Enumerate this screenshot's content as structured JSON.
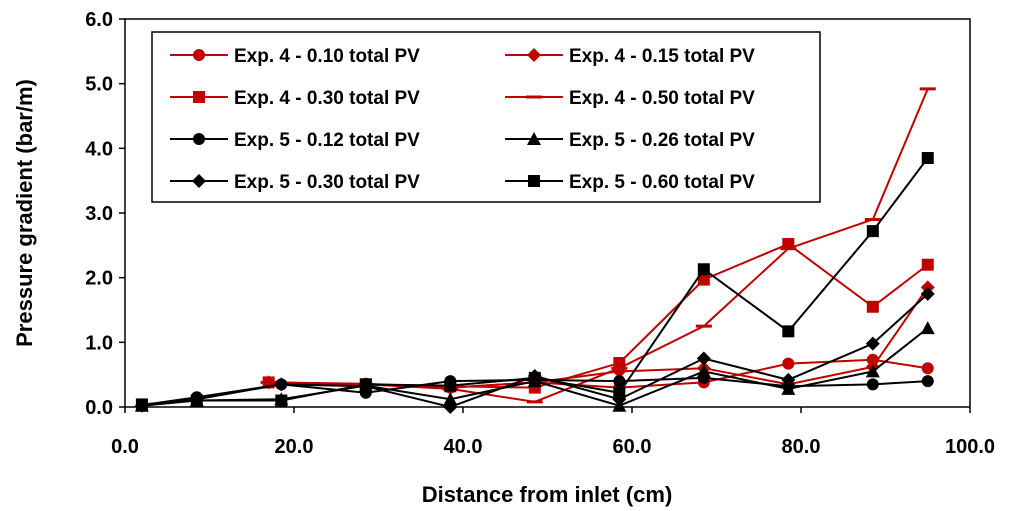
{
  "chart_data": {
    "type": "line",
    "title": "",
    "xlabel": "Distance from inlet (cm)",
    "ylabel": "Pressure gradient (bar/m)",
    "xlim": [
      0,
      100
    ],
    "ylim": [
      0,
      6
    ],
    "xticks": [
      0,
      20,
      40,
      60,
      80,
      100
    ],
    "yticks": [
      0,
      1,
      2,
      3,
      4,
      5,
      6
    ],
    "xtick_labels": [
      "0.0",
      "20.0",
      "40.0",
      "60.0",
      "80.0",
      "100.0"
    ],
    "ytick_labels": [
      "0.0",
      "1.0",
      "2.0",
      "3.0",
      "4.0",
      "5.0",
      "6.0"
    ],
    "grid": false,
    "legend": "top-left, inside plot, 2 columns",
    "series": [
      {
        "name": "Exp. 4 - 0.10 total PV",
        "color": "#c00000",
        "marker": "circle",
        "x": [
          17,
          28.5,
          38.5,
          48.5,
          58.5,
          68.5,
          78.5,
          88.5,
          95
        ],
        "y": [
          0.38,
          0.36,
          0.3,
          0.38,
          0.3,
          0.38,
          0.67,
          0.73,
          0.6
        ]
      },
      {
        "name": "Exp. 4 - 0.15 total PV",
        "color": "#c00000",
        "marker": "diamond",
        "x": [
          17,
          28.5,
          38.5,
          48.5,
          58.5,
          68.5,
          78.5,
          88.5,
          95
        ],
        "y": [
          0.38,
          0.35,
          0.3,
          0.38,
          0.55,
          0.6,
          0.35,
          0.62,
          1.85
        ]
      },
      {
        "name": "Exp. 4 - 0.30 total PV",
        "color": "#c00000",
        "marker": "square",
        "x": [
          17,
          28.5,
          38.5,
          48.5,
          58.5,
          68.5,
          78.5,
          88.5,
          95
        ],
        "y": [
          0.38,
          0.35,
          0.32,
          0.3,
          0.68,
          1.97,
          2.52,
          1.55,
          2.2
        ]
      },
      {
        "name": "Exp. 4 - 0.50 total PV",
        "color": "#c00000",
        "marker": "dash",
        "x": [
          17,
          28.5,
          38.5,
          48.5,
          58.5,
          68.5,
          78.5,
          88.5,
          95
        ],
        "y": [
          0.38,
          0.35,
          0.28,
          0.08,
          0.6,
          1.25,
          2.45,
          2.9,
          4.92
        ]
      },
      {
        "name": "Exp. 5 - 0.12 total PV",
        "color": "#000000",
        "marker": "circle",
        "x": [
          2,
          8.5,
          18.5,
          28.5,
          38.5,
          48.5,
          58.5,
          68.5,
          78.5,
          88.5,
          95
        ],
        "y": [
          0.03,
          0.15,
          0.35,
          0.22,
          0.4,
          0.42,
          0.4,
          0.45,
          0.32,
          0.35,
          0.4
        ]
      },
      {
        "name": "Exp. 5 - 0.26 total PV",
        "color": "#000000",
        "marker": "triangle",
        "x": [
          2,
          8.5,
          18.5,
          28.5,
          38.5,
          48.5,
          58.5,
          68.5,
          78.5,
          88.5,
          95
        ],
        "y": [
          0.02,
          0.1,
          0.12,
          0.33,
          0.12,
          0.4,
          0.02,
          0.55,
          0.28,
          0.55,
          1.22
        ]
      },
      {
        "name": "Exp. 5 - 0.30 total PV",
        "color": "#000000",
        "marker": "diamond",
        "x": [
          2,
          8.5,
          18.5,
          28.5,
          38.5,
          48.5,
          58.5,
          68.5,
          78.5,
          88.5,
          95
        ],
        "y": [
          0.02,
          0.12,
          0.35,
          0.32,
          0.0,
          0.48,
          0.12,
          0.75,
          0.42,
          0.98,
          1.75
        ]
      },
      {
        "name": "Exp. 5 - 0.60 total PV",
        "color": "#000000",
        "marker": "square",
        "x": [
          2,
          8.5,
          18.5,
          28.5,
          38.5,
          48.5,
          58.5,
          68.5,
          78.5,
          88.5,
          95
        ],
        "y": [
          0.04,
          0.1,
          0.1,
          0.35,
          0.33,
          0.45,
          0.22,
          2.13,
          1.17,
          2.72,
          3.85
        ]
      }
    ]
  }
}
